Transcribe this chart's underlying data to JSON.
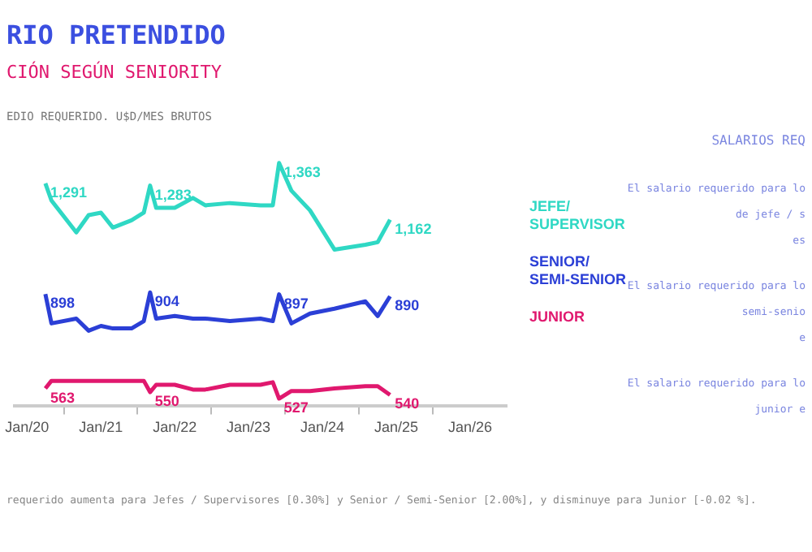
{
  "chart_data": {
    "type": "line",
    "title": "RIO PRETENDIDO",
    "subtitle": "CIÓN SEGÚN SENIORITY",
    "ylabel": "EDIO REQUERIDO. U$D/MES BRUTOS",
    "x": [
      "2020-04",
      "2020-05",
      "2020-09",
      "2020-11",
      "2021-01",
      "2021-03",
      "2021-06",
      "2021-08",
      "2021-09",
      "2021-10",
      "2022-01",
      "2022-04",
      "2022-06",
      "2022-10",
      "2023-03",
      "2023-05",
      "2023-06",
      "2023-08",
      "2023-11",
      "2024-03",
      "2024-08",
      "2024-10",
      "2024-12"
    ],
    "series": [
      {
        "name": "JEFE/ SUPERVISOR",
        "color": "#2fd8c4",
        "values": [
          1291,
          1230,
          1117,
          1178,
          1187,
          1134,
          1160,
          1187,
          1283,
          1204,
          1204,
          1239,
          1213,
          1221,
          1213,
          1213,
          1363,
          1265,
          1195,
          1056,
          1073,
          1082,
          1162
        ],
        "value_labels": [
          "1,291",
          null,
          null,
          null,
          null,
          null,
          null,
          null,
          "1,283",
          null,
          null,
          null,
          null,
          null,
          null,
          null,
          "1,363",
          null,
          null,
          null,
          null,
          null,
          "1,162"
        ]
      },
      {
        "name": "SENIOR/ SEMI-SENIOR",
        "color": "#2b3fd6",
        "values": [
          898,
          794,
          811,
          768,
          785,
          776,
          776,
          802,
          904,
          811,
          820,
          811,
          811,
          802,
          811,
          802,
          897,
          794,
          829,
          846,
          872,
          820,
          890
        ],
        "value_labels": [
          "898",
          null,
          null,
          null,
          null,
          null,
          null,
          null,
          "904",
          null,
          null,
          null,
          null,
          null,
          null,
          null,
          "897",
          null,
          null,
          null,
          null,
          null,
          "890"
        ]
      },
      {
        "name": "JUNIOR",
        "color": "#e0186e",
        "values": [
          563,
          590,
          590,
          590,
          590,
          590,
          590,
          590,
          550,
          576,
          576,
          559,
          559,
          576,
          576,
          585,
          527,
          554,
          554,
          563,
          571,
          571,
          540
        ],
        "value_labels": [
          "563",
          null,
          null,
          null,
          null,
          null,
          null,
          null,
          "550",
          null,
          null,
          null,
          null,
          null,
          null,
          null,
          "527",
          null,
          null,
          null,
          null,
          null,
          "540"
        ]
      }
    ],
    "xlim": [
      "2019-11",
      "2026-07"
    ],
    "xticks": [
      {
        "value": "2020-01",
        "label": "Jan/20"
      },
      {
        "value": "2020-07",
        "label": null
      },
      {
        "value": "2021-01",
        "label": "Jan/21"
      },
      {
        "value": "2021-07",
        "label": null
      },
      {
        "value": "2022-01",
        "label": "Jan/22"
      },
      {
        "value": "2022-07",
        "label": null
      },
      {
        "value": "2023-01",
        "label": "Jan/23"
      },
      {
        "value": "2023-07",
        "label": null
      },
      {
        "value": "2024-01",
        "label": "Jan/24"
      },
      {
        "value": "2024-07",
        "label": null
      },
      {
        "value": "2025-01",
        "label": "Jan/25"
      },
      {
        "value": "2025-07",
        "label": null
      },
      {
        "value": "2026-01",
        "label": "Jan/26"
      }
    ],
    "tick_labels": "x",
    "grid": false,
    "marker": "none",
    "line_style": "solid",
    "legend": "right",
    "annotations": [
      "SALARIOS REQ",
      "El salario requerido para lo",
      "de jefe / s",
      "es",
      "El salario requerido para lo",
      "semi-senio",
      "e",
      "El salario requerido para lo",
      "junior e",
      "requerido aumenta para Jefes / Supervisores [0.30%] y Senior / Semi-Senior [2.00%], y disminuye para Junior [-0.02 %]."
    ]
  }
}
